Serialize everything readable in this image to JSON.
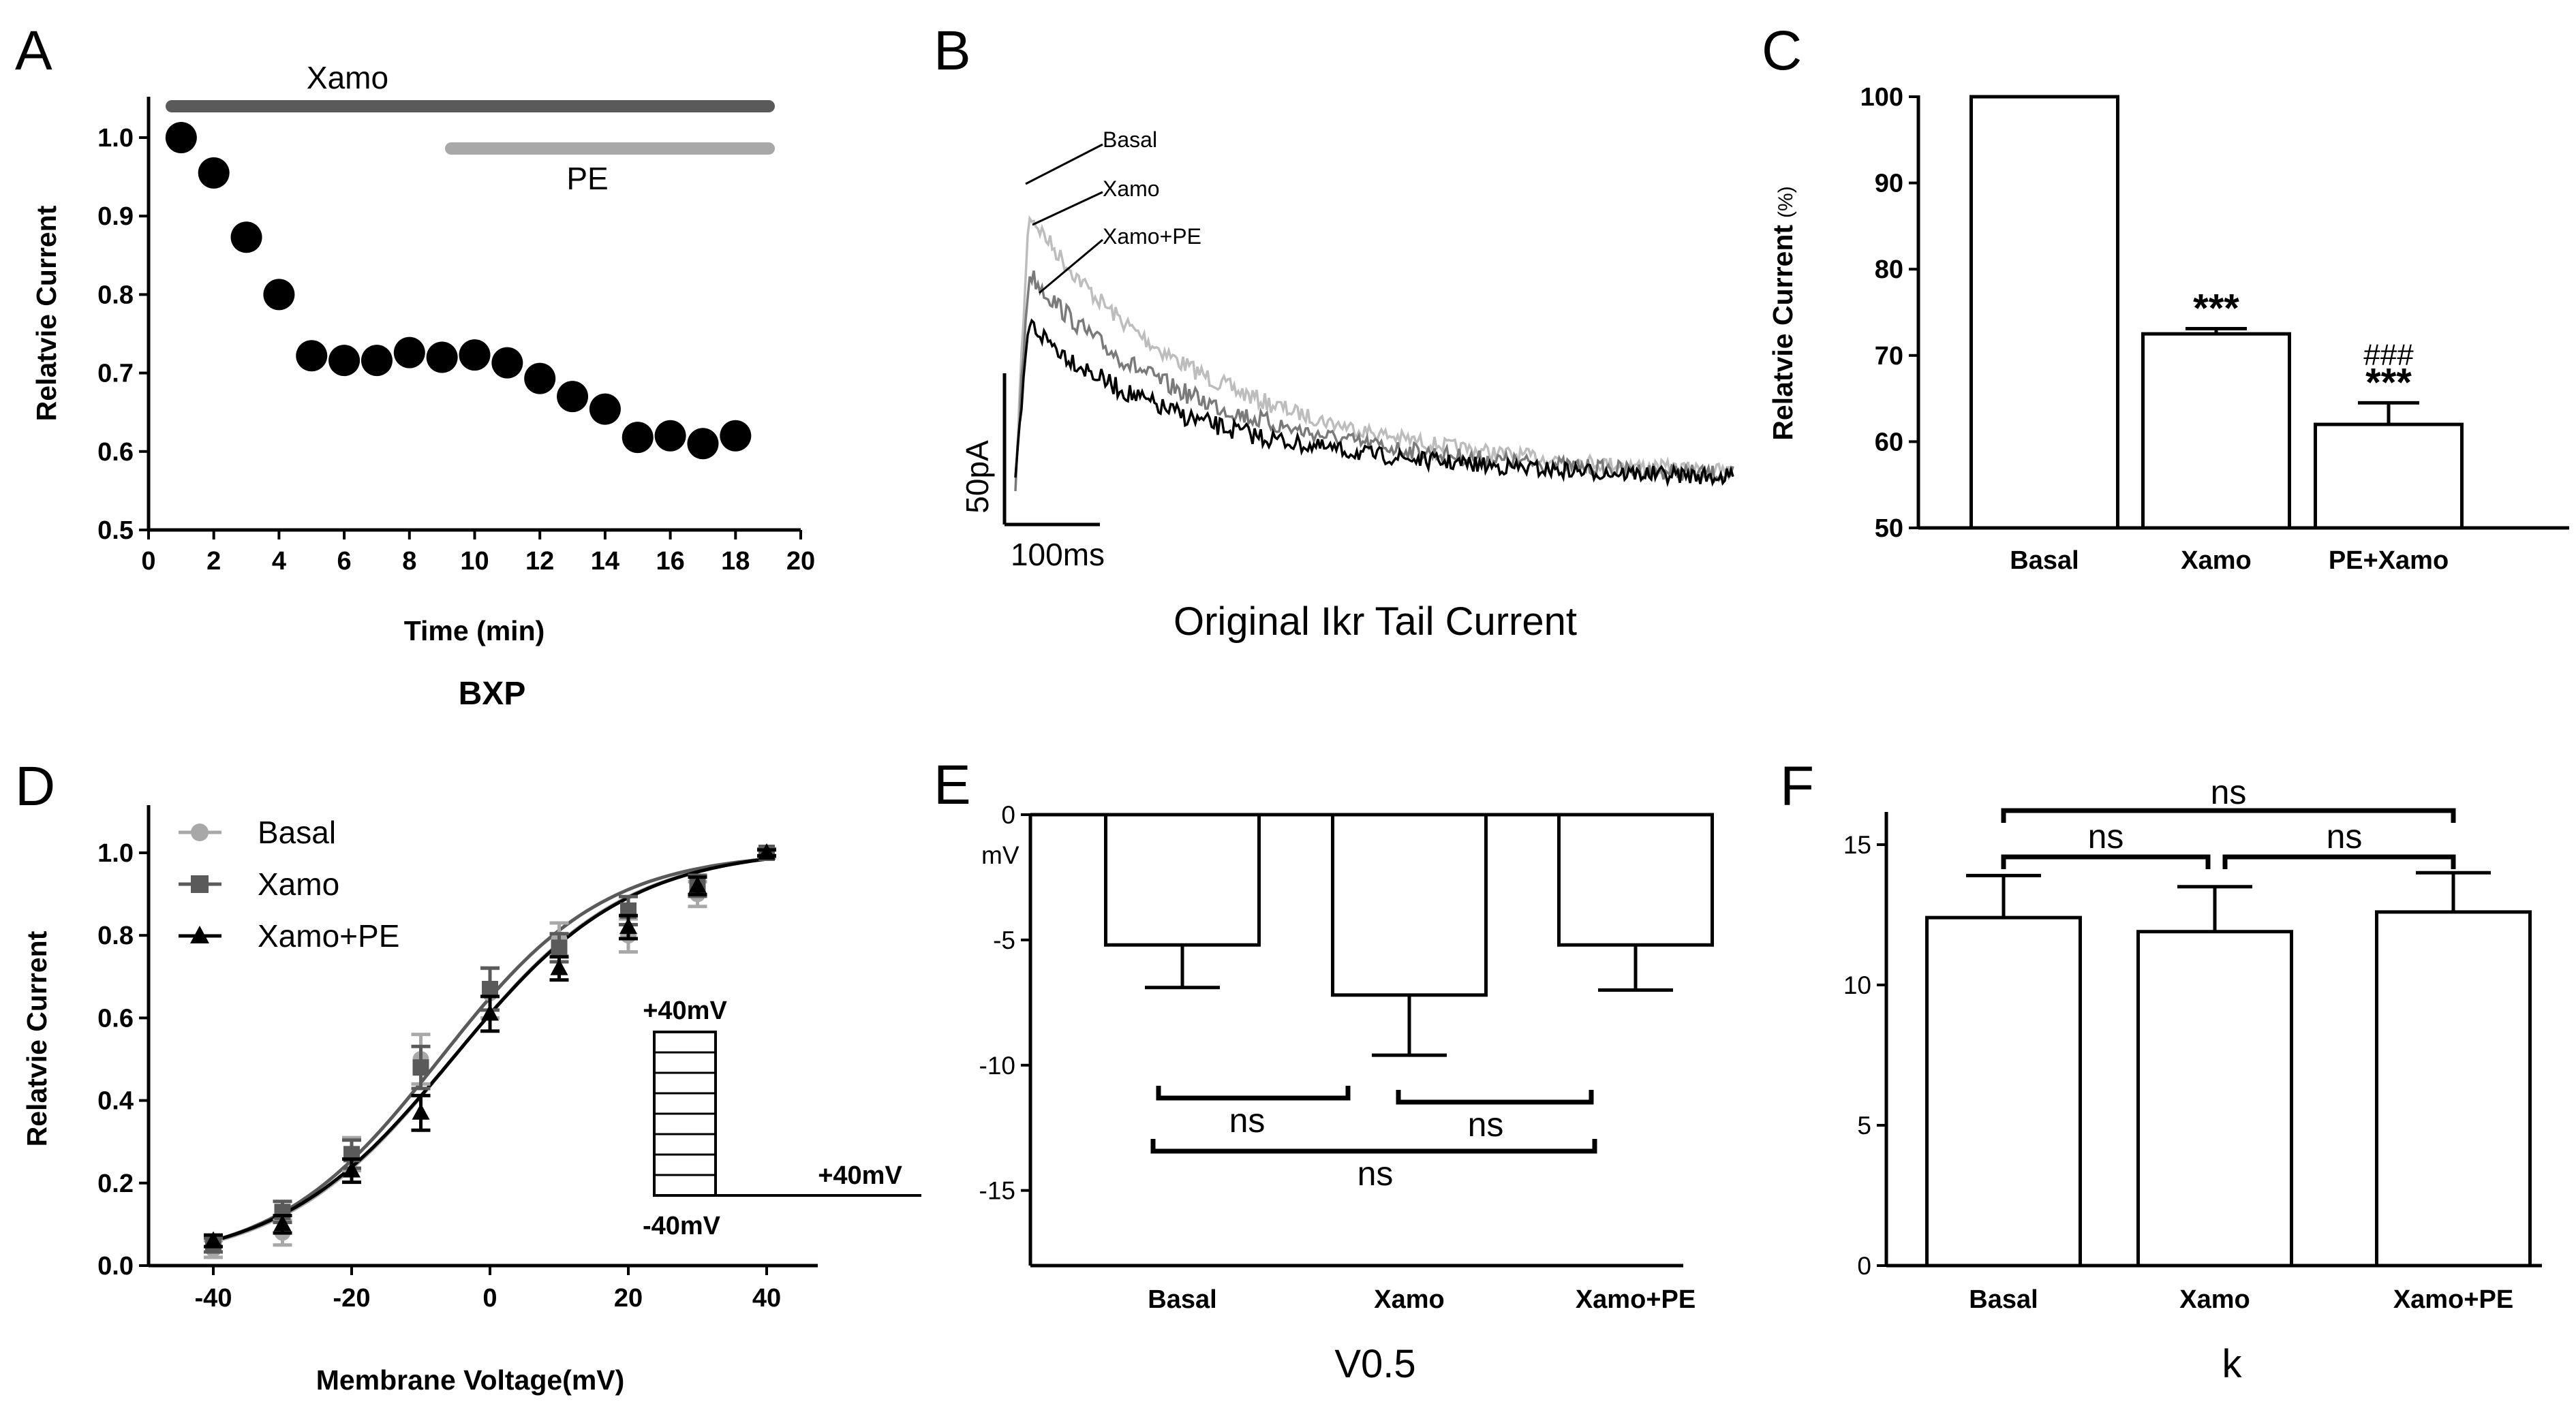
{
  "colors": {
    "black": "#000000",
    "dark_gray": "#5a5a5a",
    "mid_gray": "#7a7a7a",
    "light_gray": "#a8a8a8",
    "lighter_gray": "#bdbdbd"
  },
  "chart_data": [
    {
      "panel": "A",
      "type": "scatter",
      "xlabel": "Time (min)",
      "ylabel": "Relatvie Current",
      "caption": "BXP",
      "xlim": [
        0,
        20
      ],
      "ylim": [
        0.5,
        1.05
      ],
      "xticks": [
        "0",
        "2",
        "4",
        "6",
        "8",
        "10",
        "12",
        "14",
        "16",
        "18",
        "20"
      ],
      "yticks": [
        "0.5",
        "0.6",
        "0.7",
        "0.8",
        "0.9",
        "1.0"
      ],
      "x": [
        1,
        2,
        3,
        4,
        5,
        6,
        7,
        8,
        9,
        10,
        11,
        12,
        13,
        14,
        15,
        16,
        17,
        18
      ],
      "y": [
        1.0,
        0.955,
        0.873,
        0.8,
        0.722,
        0.716,
        0.716,
        0.726,
        0.72,
        0.723,
        0.713,
        0.693,
        0.67,
        0.654,
        0.618,
        0.62,
        0.61,
        0.62
      ],
      "annotations": [
        {
          "label": "Xamo",
          "x_start": 0.7,
          "x_end": 19,
          "color": "#5a5a5a"
        },
        {
          "label": "PE",
          "x_start": 9.3,
          "x_end": 19,
          "color": "#a8a8a8"
        }
      ]
    },
    {
      "panel": "B",
      "type": "line",
      "caption": "Original Ikr Tail Current",
      "scale_bar_y": "50pA",
      "scale_bar_x": "100ms",
      "series": [
        {
          "name": "Basal",
          "color": "#bdbdbd"
        },
        {
          "name": "Xamo",
          "color": "#7a7a7a"
        },
        {
          "name": "Xamo+PE",
          "color": "#000000"
        }
      ]
    },
    {
      "panel": "C",
      "type": "bar",
      "ylabel": "Relatvie Current",
      "ylabel_unit": "(%)",
      "categories": [
        "Basal",
        "Xamo",
        "PE+Xamo"
      ],
      "values": [
        100,
        72.5,
        62
      ],
      "errors": [
        0,
        0.6,
        2.5
      ],
      "ylim": [
        50,
        100
      ],
      "yticks": [
        "50",
        "60",
        "70",
        "80",
        "90",
        "100"
      ],
      "significance": [
        "",
        "***",
        "***"
      ],
      "significance_vs_xamo": [
        "",
        "",
        "###"
      ]
    },
    {
      "panel": "D",
      "type": "line",
      "xlabel": "Membrane Voltage(mV)",
      "ylabel": "Relatvie Current",
      "xlim": [
        -50,
        45
      ],
      "ylim": [
        0,
        1.1
      ],
      "xticks": [
        "-40",
        "-20",
        "0",
        "20",
        "40"
      ],
      "yticks": [
        "0.0",
        "0.2",
        "0.4",
        "0.6",
        "0.8",
        "1.0"
      ],
      "x": [
        -40,
        -30,
        -20,
        -10,
        0,
        10,
        20,
        30,
        40
      ],
      "series": [
        {
          "name": "Basal",
          "marker": "circle",
          "color": "#a8a8a8",
          "values": [
            0.04,
            0.08,
            0.27,
            0.5,
            0.66,
            0.79,
            0.8,
            0.9,
            1.0
          ],
          "v_half": -5.2,
          "k": 12.4
        },
        {
          "name": "Xamo",
          "marker": "square",
          "color": "#5a5a5a",
          "values": [
            0.05,
            0.13,
            0.27,
            0.48,
            0.67,
            0.77,
            0.86,
            0.92,
            1.0
          ],
          "v_half": -7.2,
          "k": 11.9
        },
        {
          "name": "Xamo+PE",
          "marker": "triangle",
          "color": "#000000",
          "values": [
            0.06,
            0.1,
            0.23,
            0.37,
            0.61,
            0.72,
            0.82,
            0.92,
            1.0
          ],
          "v_half": -5.2,
          "k": 12.6
        }
      ],
      "inset": {
        "top_label": "+40mV",
        "bottom_label": "-40mV",
        "right_label": "+40mV",
        "steps": 8
      }
    },
    {
      "panel": "E",
      "type": "bar",
      "ylabel": "mV",
      "caption": "V0.5",
      "categories": [
        "Basal",
        "Xamo",
        "Xamo+PE"
      ],
      "values": [
        -5.2,
        -7.2,
        -5.2
      ],
      "errors": [
        1.7,
        2.4,
        1.8
      ],
      "ylim": [
        -18,
        0
      ],
      "yticks": [
        "0",
        "-5",
        "-10",
        "-15"
      ],
      "comparisons": [
        "ns",
        "ns",
        "ns"
      ]
    },
    {
      "panel": "F",
      "type": "bar",
      "caption": "k",
      "categories": [
        "Basal",
        "Xamo",
        "Xamo+PE"
      ],
      "values": [
        12.4,
        11.9,
        12.6
      ],
      "errors": [
        1.5,
        1.6,
        1.4
      ],
      "ylim": [
        0,
        16
      ],
      "yticks": [
        "0",
        "5",
        "10",
        "15"
      ],
      "comparisons": [
        "ns",
        "ns",
        "ns"
      ]
    }
  ]
}
